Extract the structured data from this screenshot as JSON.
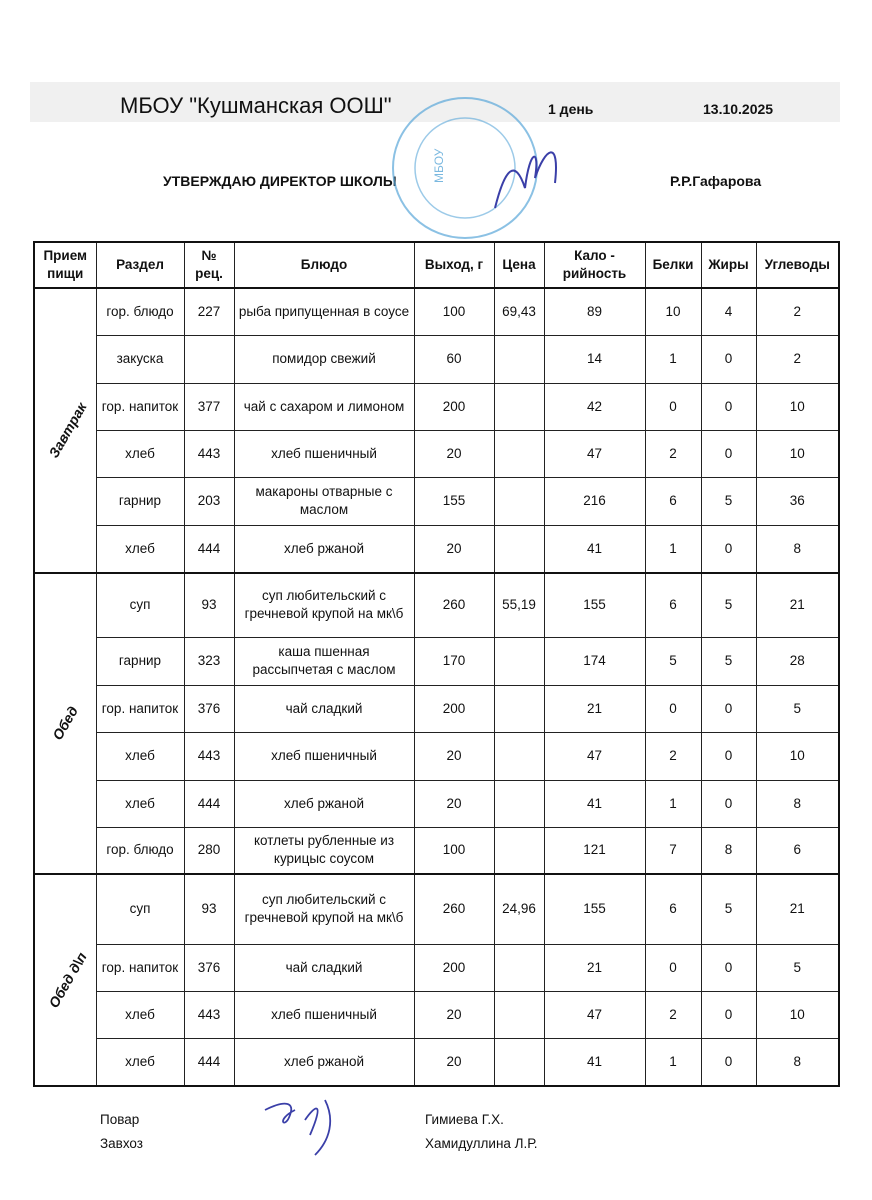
{
  "header": {
    "school": "МБОУ \"Кушманская ООШ\"",
    "day": "1 день",
    "date": "13.10.2025",
    "approve": "УТВЕРЖДАЮ ДИРЕКТОР  ШКОЛЫ",
    "director": "Р.Р.Гафарова",
    "stamp_text": "МБОУ"
  },
  "columns": [
    "Прием пищи",
    "Раздел",
    "№ рец.",
    "Блюдо",
    "Выход, г",
    "Цена",
    "Кало - рийность",
    "Белки",
    "Жиры",
    "Углеводы"
  ],
  "groups": [
    {
      "meal": "Завтрак",
      "rows": [
        [
          "гор. блюдо",
          "227",
          "рыба припущенная в соусе",
          "100",
          "69,43",
          "89",
          "10",
          "4",
          "2"
        ],
        [
          "закуска",
          "",
          "помидор свежий",
          "60",
          "",
          "14",
          "1",
          "0",
          "2"
        ],
        [
          "гор. напиток",
          "377",
          "чай с сахаром  и лимоном",
          "200",
          "",
          "42",
          "0",
          "0",
          "10"
        ],
        [
          "хлеб",
          "443",
          "хлеб пшеничный",
          "20",
          "",
          "47",
          "2",
          "0",
          "10"
        ],
        [
          "гарнир",
          "203",
          "макароны отварные с маслом",
          "155",
          "",
          "216",
          "6",
          "5",
          "36"
        ],
        [
          "хлеб",
          "444",
          "хлеб ржаной",
          "20",
          "",
          "41",
          "1",
          "0",
          "8"
        ]
      ]
    },
    {
      "meal": "Обед",
      "rows": [
        [
          "суп",
          "93",
          "суп любительский с гречневой крупой на мк\\б",
          "260",
          "55,19",
          "155",
          "6",
          "5",
          "21"
        ],
        [
          "гарнир",
          "323",
          "каша пшенная рассыпчетая с маслом",
          "170",
          "",
          "174",
          "5",
          "5",
          "28"
        ],
        [
          "гор. напиток",
          "376",
          "чай сладкий",
          "200",
          "",
          "21",
          "0",
          "0",
          "5"
        ],
        [
          "хлеб",
          "443",
          "хлеб пшеничный",
          "20",
          "",
          "47",
          "2",
          "0",
          "10"
        ],
        [
          "хлеб",
          "444",
          "хлеб ржаной",
          "20",
          "",
          "41",
          "1",
          "0",
          "8"
        ],
        [
          "гор. блюдо",
          "280",
          "котлеты рубленные из курицыс соусом",
          "100",
          "",
          "121",
          "7",
          "8",
          "6"
        ]
      ]
    },
    {
      "meal": "Обед д\\п",
      "rows": [
        [
          "суп",
          "93",
          "суп любительский с гречневой крупой на мк\\б",
          "260",
          "24,96",
          "155",
          "6",
          "5",
          "21"
        ],
        [
          "гор. напиток",
          "376",
          "чай сладкий",
          "200",
          "",
          "21",
          "0",
          "0",
          "5"
        ],
        [
          "хлеб",
          "443",
          "хлеб пшеничный",
          "20",
          "",
          "47",
          "2",
          "0",
          "10"
        ],
        [
          "хлеб",
          "444",
          "хлеб ржаной",
          "20",
          "",
          "41",
          "1",
          "0",
          "8"
        ]
      ]
    }
  ],
  "footer": {
    "cook_label": "Повар",
    "cook_name": "Гимиева Г.Х.",
    "manager_label": "Завхоз",
    "manager_name": "Хамидуллина Л.Р."
  },
  "colors": {
    "stamp": "#5aa7d8",
    "signature": "#3a3fa8"
  }
}
